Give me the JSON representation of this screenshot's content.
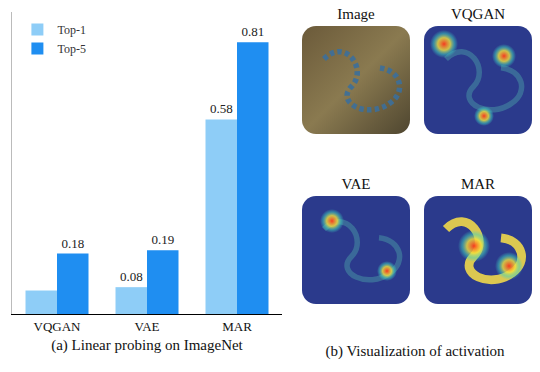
{
  "chart_data": {
    "type": "bar",
    "x_label": "(a) Linear probing on ImageNet",
    "categories": [
      "VQGAN",
      "VAE",
      "MAR"
    ],
    "series": [
      {
        "name": "Top-1",
        "color": "#8ecdf7",
        "values": [
          0.07,
          0.08,
          0.58
        ],
        "value_labels": [
          null,
          "0.08",
          "0.58"
        ]
      },
      {
        "name": "Top-5",
        "color": "#1f8ef1",
        "values": [
          0.18,
          0.19,
          0.81
        ],
        "value_labels": [
          "0.18",
          "0.19",
          "0.81"
        ]
      }
    ],
    "ylim": [
      0,
      0.9
    ],
    "data_labels": true,
    "tick_labels": "x",
    "legend": "upper left",
    "grid": false
  },
  "figure_b": {
    "caption": "(b) Visualization of activation",
    "panels": [
      {
        "label": "Image"
      },
      {
        "label": "VQGAN"
      },
      {
        "label": "VAE"
      },
      {
        "label": "MAR"
      }
    ]
  }
}
